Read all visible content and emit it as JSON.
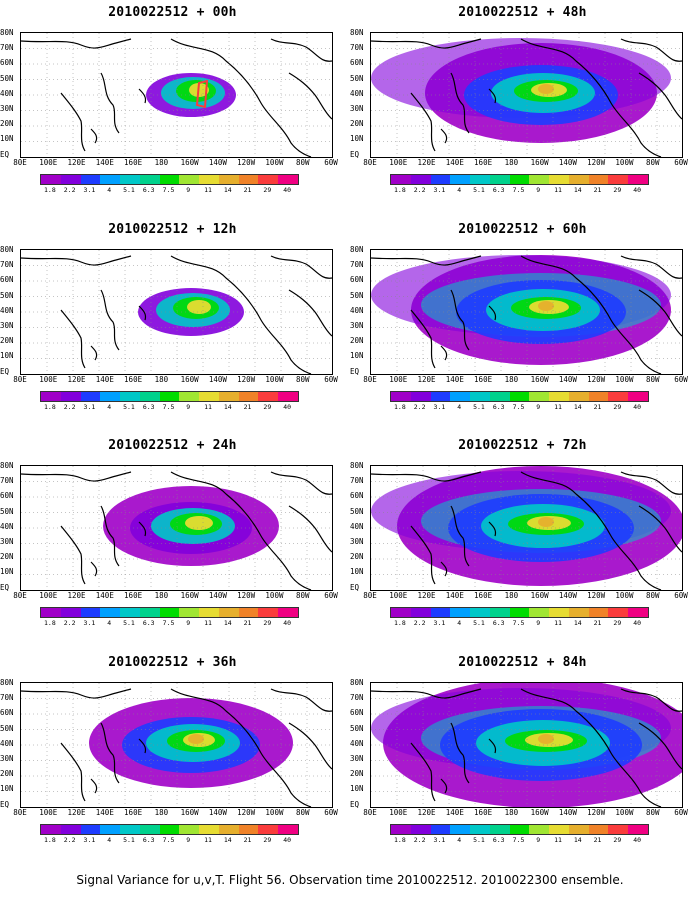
{
  "footer_caption": "Signal Variance for u,v,T. Flight 56. Observation time 2010022512. 2010022300 ensemble.",
  "lat_labels": [
    "80N",
    "70N",
    "60N",
    "50N",
    "40N",
    "30N",
    "20N",
    "10N",
    "EQ"
  ],
  "lon_labels": [
    "80E",
    "100E",
    "120E",
    "140E",
    "160E",
    "180",
    "160W",
    "140W",
    "120W",
    "100W",
    "80W",
    "60W"
  ],
  "colorbar": {
    "colors": [
      "#a000c8",
      "#8200dc",
      "#1e3cff",
      "#00a0ff",
      "#00c8c8",
      "#00d28c",
      "#00dc00",
      "#a0e632",
      "#e6dc32",
      "#e6af2d",
      "#f08228",
      "#fa3c3c",
      "#f00082"
    ],
    "labels": [
      "1.8",
      "2.2",
      "3.1",
      "4",
      "5.1",
      "6.3",
      "7.5",
      "9",
      "11",
      "14",
      "21",
      "29",
      "40"
    ]
  },
  "panels": [
    {
      "id": "p00",
      "title": "2010022512 + 00h",
      "intensity": 0
    },
    {
      "id": "p48",
      "title": "2010022512 + 48h",
      "intensity": 4
    },
    {
      "id": "p12",
      "title": "2010022512 + 12h",
      "intensity": 1
    },
    {
      "id": "p60",
      "title": "2010022512 + 60h",
      "intensity": 5
    },
    {
      "id": "p24",
      "title": "2010022512 + 24h",
      "intensity": 2
    },
    {
      "id": "p72",
      "title": "2010022512 + 72h",
      "intensity": 6
    },
    {
      "id": "p36",
      "title": "2010022512 + 36h",
      "intensity": 3
    },
    {
      "id": "p84",
      "title": "2010022512 + 84h",
      "intensity": 7
    }
  ]
}
